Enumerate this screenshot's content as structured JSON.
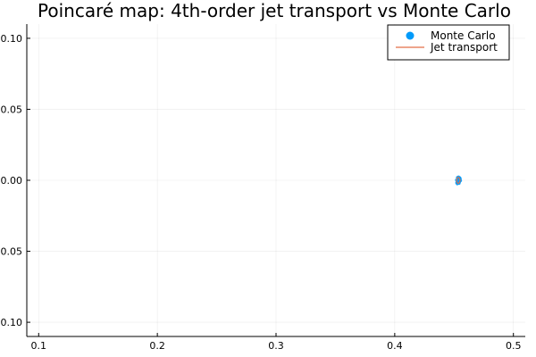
{
  "chart_data": {
    "type": "scatter",
    "title": "Poincaré map: 4th-order jet transport vs Monte Carlo",
    "xlabel": "",
    "ylabel": "",
    "xlim": [
      0.09,
      0.51
    ],
    "ylim": [
      -0.11,
      0.11
    ],
    "x_ticks": [
      0.1,
      0.2,
      0.3,
      0.4,
      0.5
    ],
    "x_tick_labels": [
      "0.1",
      "0.2",
      "0.3",
      "0.4",
      "0.5"
    ],
    "y_ticks": [
      0.1,
      0.05,
      0.0,
      -0.05,
      -0.1
    ],
    "y_tick_labels": [
      "0.10",
      "0.05",
      "0.00",
      "-0.05",
      "-0.10"
    ],
    "grid": true,
    "legend_position": "top-right",
    "series": [
      {
        "name": "Monte Carlo",
        "kind": "scatter",
        "color": "#009AFA",
        "points": [
          [
            0.452,
            0.0002
          ],
          [
            0.4525,
            -0.001
          ],
          [
            0.453,
            0.0015
          ],
          [
            0.4535,
            -0.0005
          ],
          [
            0.454,
            0.001
          ],
          [
            0.4545,
            -0.0015
          ],
          [
            0.455,
            0.0005
          ],
          [
            0.4555,
            -0.0002
          ],
          [
            0.4528,
            0.002
          ],
          [
            0.4542,
            -0.0022
          ],
          [
            0.4548,
            0.0018
          ],
          [
            0.4522,
            -0.0018
          ],
          [
            0.4533,
            0.0
          ],
          [
            0.4538,
            0.0024
          ],
          [
            0.4544,
            0.0008
          ],
          [
            0.4527,
            -0.0025
          ],
          [
            0.4552,
            0.0012
          ],
          [
            0.4531,
            -0.0012
          ],
          [
            0.4547,
            -0.0008
          ],
          [
            0.4536,
            0.0006
          ]
        ]
      },
      {
        "name": "Jet transport",
        "kind": "line",
        "color": "#E36F47",
        "points": [
          [
            0.4527,
            0.0018
          ],
          [
            0.4535,
            0.0022
          ],
          [
            0.4546,
            0.0016
          ],
          [
            0.4551,
            0.0
          ],
          [
            0.4546,
            -0.0016
          ],
          [
            0.4535,
            -0.0022
          ],
          [
            0.4527,
            -0.0018
          ],
          [
            0.4522,
            0.0
          ],
          [
            0.4527,
            0.0018
          ]
        ]
      }
    ]
  }
}
